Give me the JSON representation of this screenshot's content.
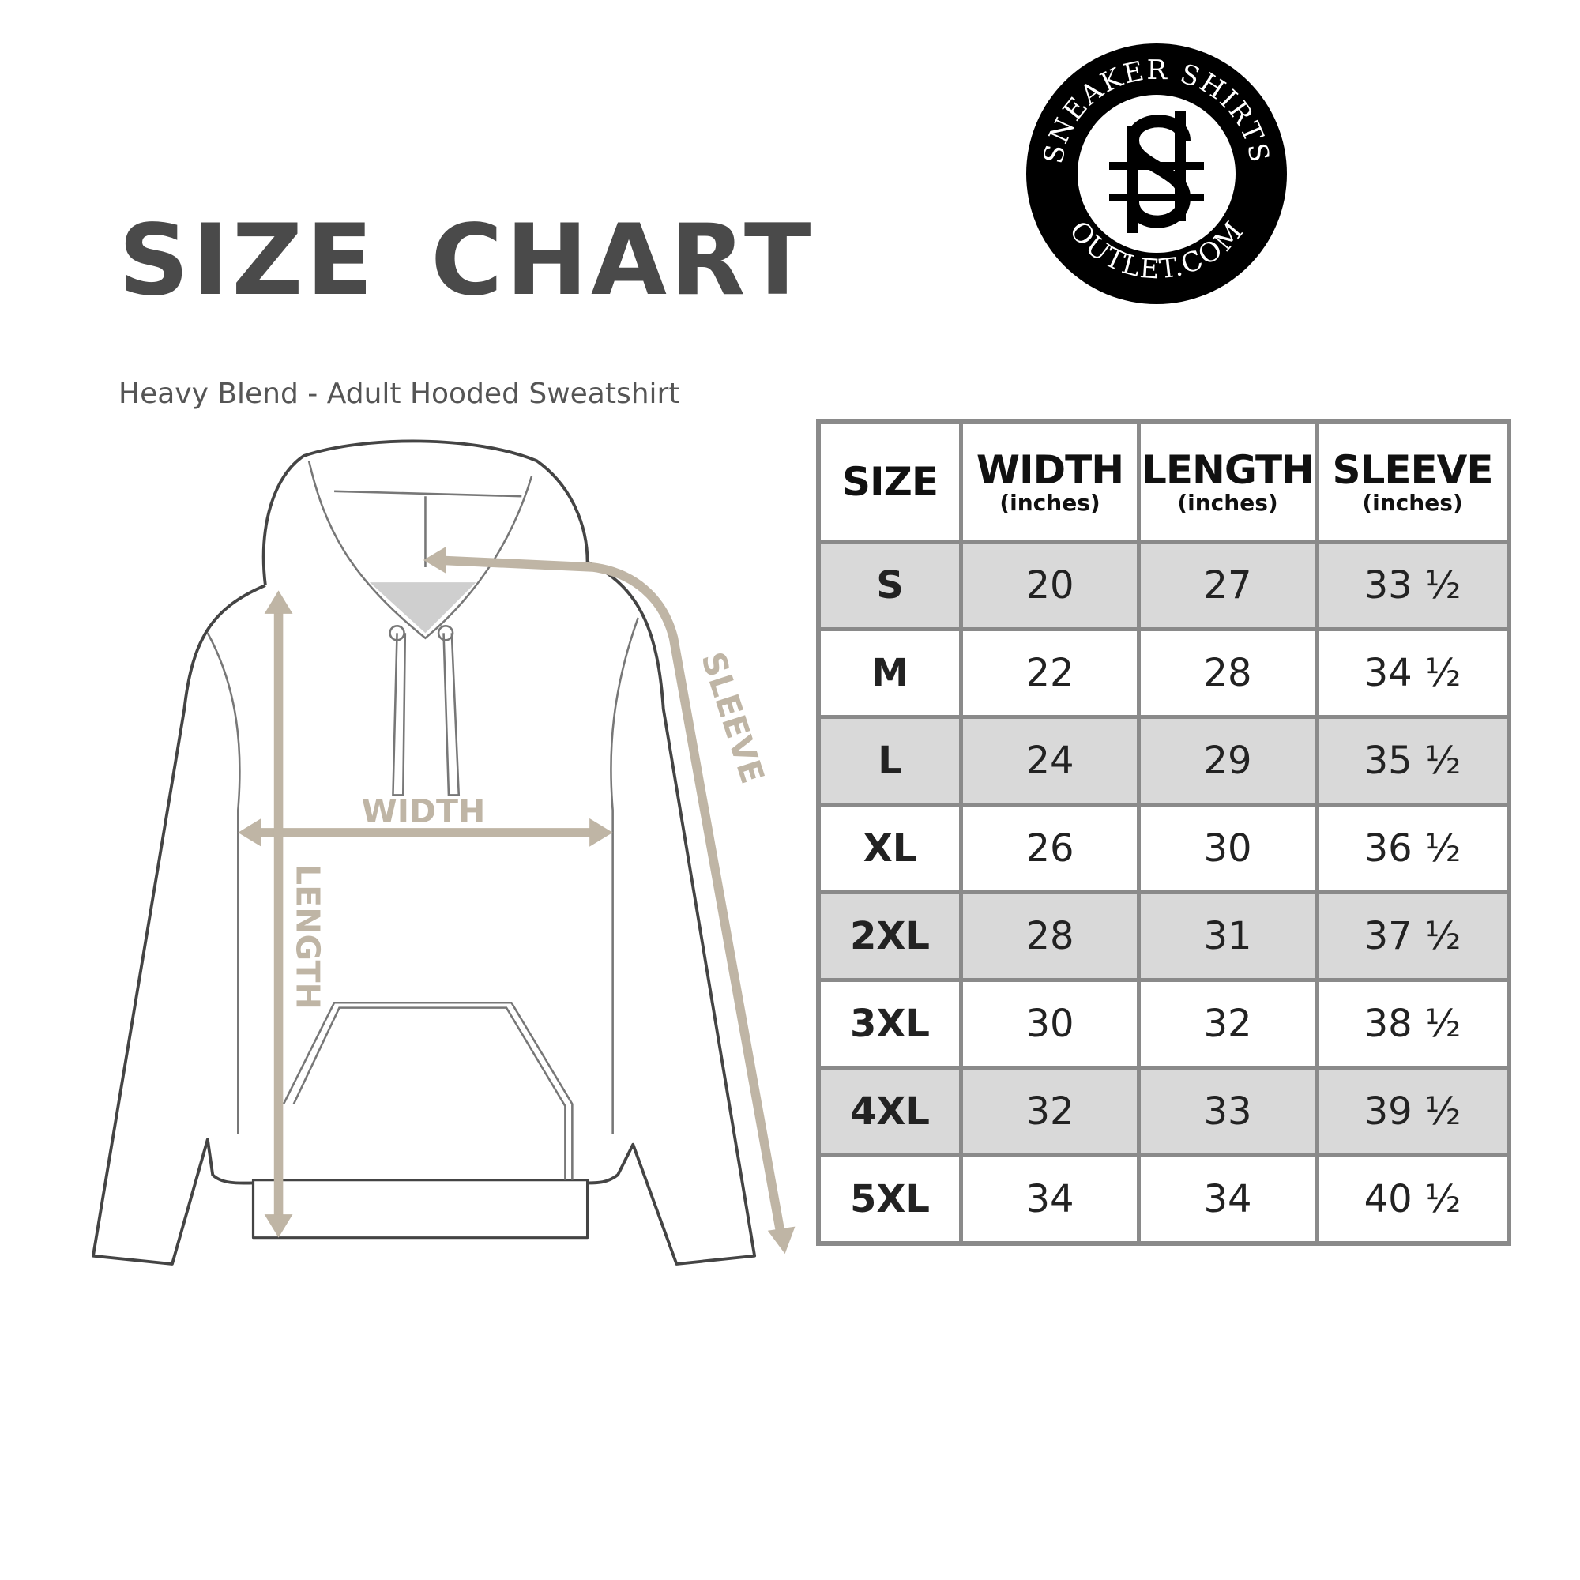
{
  "title": "SIZE CHART",
  "subtitle": "Heavy Blend - Adult Hooded Sweatshirt",
  "logo": {
    "top_text": "SNEAKER SHIRTS",
    "bottom_text": "OUTLET.COM",
    "monogram": "SS"
  },
  "diagram_labels": {
    "width": "WIDTH",
    "length": "LENGTH",
    "sleeve": "SLEEVE"
  },
  "colors": {
    "arrow": "#bfb5a5",
    "row_alt": "#d9d9d9",
    "border": "#8a8a8a",
    "title": "#4a4a4a"
  },
  "table": {
    "headers": [
      {
        "label": "SIZE",
        "unit": ""
      },
      {
        "label": "WIDTH",
        "unit": "(inches)"
      },
      {
        "label": "LENGTH",
        "unit": "(inches)"
      },
      {
        "label": "SLEEVE",
        "unit": "(inches)"
      }
    ],
    "rows": [
      {
        "size": "S",
        "width": "20",
        "length": "27",
        "sleeve": "33 ½"
      },
      {
        "size": "M",
        "width": "22",
        "length": "28",
        "sleeve": "34 ½"
      },
      {
        "size": "L",
        "width": "24",
        "length": "29",
        "sleeve": "35 ½"
      },
      {
        "size": "XL",
        "width": "26",
        "length": "30",
        "sleeve": "36 ½"
      },
      {
        "size": "2XL",
        "width": "28",
        "length": "31",
        "sleeve": "37 ½"
      },
      {
        "size": "3XL",
        "width": "30",
        "length": "32",
        "sleeve": "38 ½"
      },
      {
        "size": "4XL",
        "width": "32",
        "length": "33",
        "sleeve": "39 ½"
      },
      {
        "size": "5XL",
        "width": "34",
        "length": "34",
        "sleeve": "40 ½"
      }
    ]
  }
}
